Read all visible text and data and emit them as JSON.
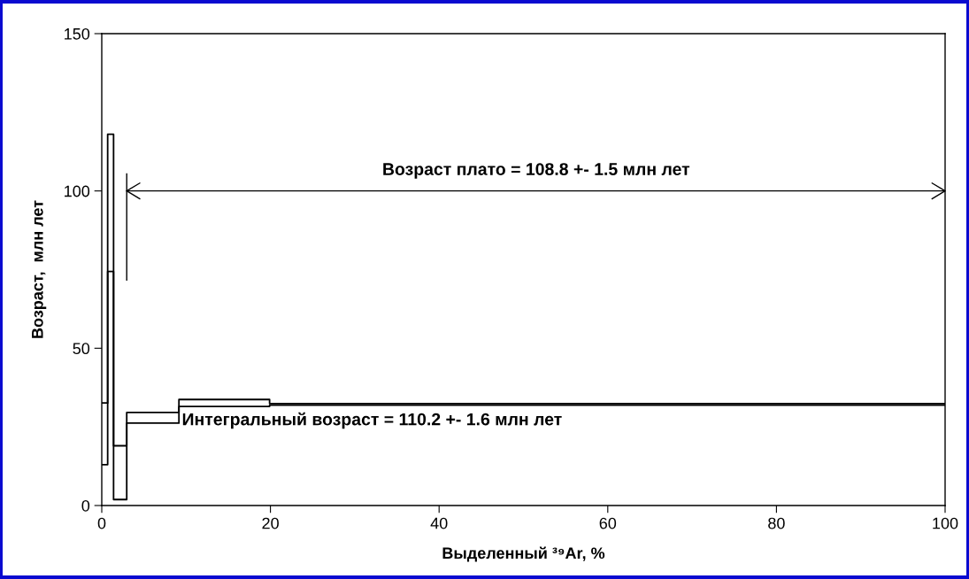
{
  "chart_data": {
    "type": "step",
    "xlabel": "Выделенный ³⁹Ar, %",
    "ylabel": "Возраст,  млн лет",
    "series": [
      {
        "color": "#000000",
        "x": [
          0,
          0.7,
          1.4,
          2.96,
          9.15,
          19.9,
          100
        ],
        "values": [
          13,
          74.4,
          1.9,
          26.2,
          31.5,
          31.9,
          31.9
        ]
      },
      {
        "color": "#000000",
        "x": [
          0,
          0.7,
          1.4,
          2.96,
          9.15,
          19.9,
          100
        ],
        "values": [
          32.6,
          118,
          19,
          29.6,
          33.7,
          32.4,
          32.4
        ]
      },
      {
        "type": "line",
        "color": "#000000",
        "x": [
          2.96,
          100
        ],
        "values": [
          100,
          100
        ]
      },
      {
        "type": "line",
        "color": "#000000",
        "x": [
          2.96,
          2.96
        ],
        "values": [
          71.7,
          105.4
        ]
      }
    ],
    "annotations": [
      {
        "text": "Возраст плато = 108.8 +- 1.5 млн лет",
        "x": 51.5,
        "y": 100
      },
      "Интегральный возраст = 110.2 +- 1.6 млн лет"
    ],
    "xlim": [
      0,
      100
    ],
    "xticks": [
      0,
      20,
      40,
      60,
      80,
      100
    ],
    "ylim": [
      0,
      150
    ],
    "yticks": [
      0,
      50,
      100,
      150
    ],
    "grid": false,
    "legend": false
  }
}
